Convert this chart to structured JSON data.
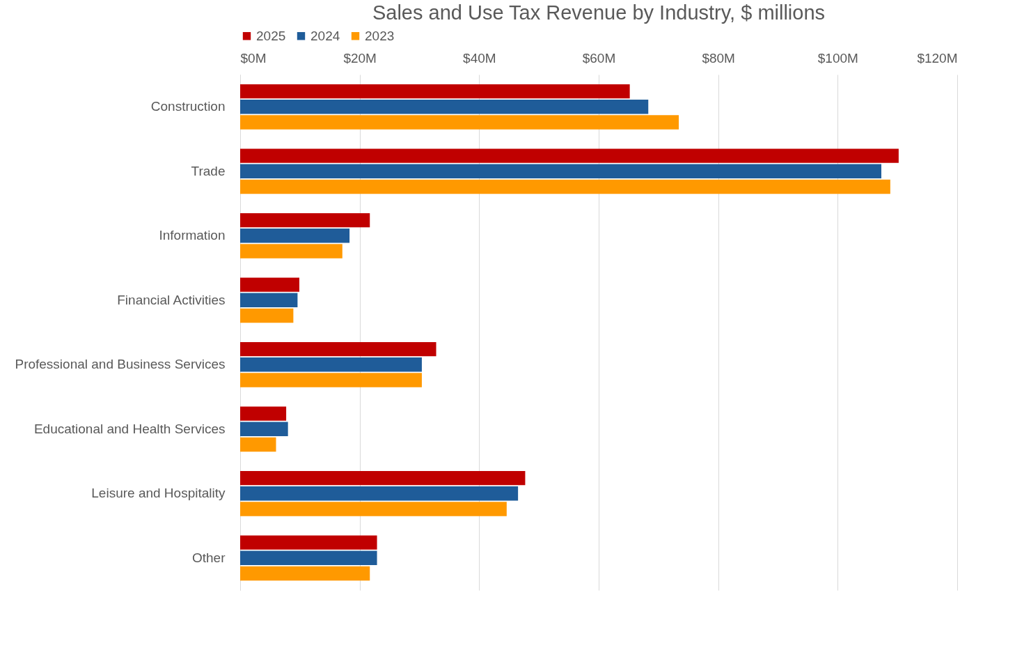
{
  "chart_data": {
    "type": "bar",
    "orientation": "horizontal",
    "title": "Sales and Use Tax Revenue by Industry, $ millions",
    "categories": [
      "Construction",
      "Trade",
      "Information",
      "Financial Activities",
      "Professional and Business Services",
      "Educational and Health Services",
      "Leisure and Hospitality",
      "Other"
    ],
    "series": [
      {
        "name": "2025",
        "color": "#c00000",
        "values": [
          65.2,
          110.2,
          21.7,
          9.9,
          32.8,
          7.7,
          47.7,
          22.9
        ]
      },
      {
        "name": "2024",
        "color": "#1f5c99",
        "values": [
          68.3,
          107.3,
          18.3,
          9.6,
          30.4,
          8.0,
          46.5,
          22.9
        ]
      },
      {
        "name": "2023",
        "color": "#ff9900",
        "values": [
          73.4,
          108.8,
          17.1,
          8.9,
          30.4,
          6.0,
          44.6,
          21.7
        ]
      }
    ],
    "xlim": [
      0,
      120
    ],
    "xticks": [
      {
        "value": 0,
        "label": "$0M"
      },
      {
        "value": 20,
        "label": "$20M"
      },
      {
        "value": 40,
        "label": "$40M"
      },
      {
        "value": 60,
        "label": "$60M"
      },
      {
        "value": 80,
        "label": "$80M"
      },
      {
        "value": 100,
        "label": "$100M"
      },
      {
        "value": 120,
        "label": "$120M"
      }
    ],
    "grid": "x",
    "legend": "top left"
  }
}
